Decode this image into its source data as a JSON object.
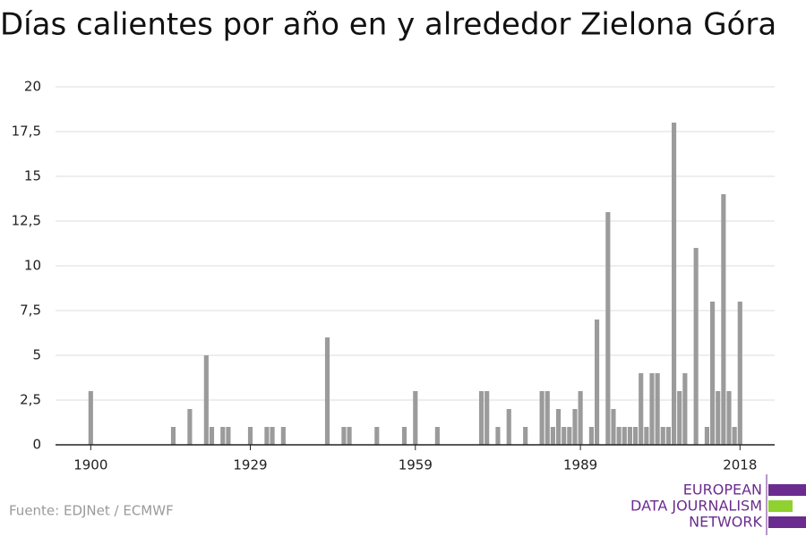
{
  "chart_data": {
    "type": "bar",
    "title": "Días calientes por año en y alrededor Zielona Góra",
    "source": "Fuente: EDJNet / ECMWF",
    "logo": [
      "EUROPEAN",
      "DATA JOURNALISM",
      "NETWORK"
    ],
    "color": "#9b9b9b",
    "grid": true,
    "x": [
      1900,
      1901,
      1902,
      1903,
      1904,
      1905,
      1906,
      1907,
      1908,
      1909,
      1910,
      1911,
      1912,
      1913,
      1914,
      1915,
      1916,
      1917,
      1918,
      1919,
      1920,
      1921,
      1922,
      1923,
      1924,
      1925,
      1926,
      1927,
      1928,
      1929,
      1930,
      1931,
      1932,
      1933,
      1934,
      1935,
      1936,
      1937,
      1938,
      1939,
      1940,
      1941,
      1942,
      1943,
      1944,
      1945,
      1946,
      1947,
      1948,
      1949,
      1950,
      1951,
      1952,
      1953,
      1954,
      1955,
      1956,
      1957,
      1958,
      1959,
      1960,
      1961,
      1962,
      1963,
      1964,
      1965,
      1966,
      1967,
      1968,
      1969,
      1970,
      1971,
      1972,
      1973,
      1974,
      1975,
      1976,
      1977,
      1978,
      1979,
      1980,
      1981,
      1982,
      1983,
      1984,
      1985,
      1986,
      1987,
      1988,
      1989,
      1990,
      1991,
      1992,
      1993,
      1994,
      1995,
      1996,
      1997,
      1998,
      1999,
      2000,
      2001,
      2002,
      2003,
      2004,
      2005,
      2006,
      2007,
      2008,
      2009,
      2010,
      2011,
      2012,
      2013,
      2014,
      2015,
      2016,
      2017,
      2018
    ],
    "values": [
      3,
      0,
      0,
      0,
      0,
      0,
      0,
      0,
      0,
      0,
      0,
      0,
      0,
      0,
      0,
      1,
      0,
      0,
      2,
      0,
      0,
      5,
      1,
      0,
      1,
      1,
      0,
      0,
      0,
      1,
      0,
      0,
      1,
      1,
      0,
      1,
      0,
      0,
      0,
      0,
      0,
      0,
      0,
      6,
      0,
      0,
      1,
      1,
      0,
      0,
      0,
      0,
      1,
      0,
      0,
      0,
      0,
      1,
      0,
      3,
      0,
      0,
      0,
      1,
      0,
      0,
      0,
      0,
      0,
      0,
      0,
      3,
      3,
      0,
      1,
      0,
      2,
      0,
      0,
      1,
      0,
      0,
      3,
      3,
      1,
      2,
      1,
      1,
      2,
      3,
      0,
      1,
      7,
      0,
      13,
      2,
      1,
      1,
      1,
      1,
      4,
      1,
      4,
      4,
      1,
      1,
      18,
      3,
      4,
      0,
      11,
      0,
      1,
      8,
      3,
      14,
      3,
      1,
      8
    ],
    "xlim": [
      1893.6,
      2024.3
    ],
    "xticks": [
      1900,
      1929,
      1959,
      1989,
      2018
    ],
    "ylim": [
      0,
      20
    ],
    "yticks": [
      0,
      {
        "value": 2.5,
        "label": "2,5"
      },
      5,
      {
        "value": 7.5,
        "label": "7,5"
      },
      10,
      {
        "value": 12.5,
        "label": "12,5"
      },
      15,
      {
        "value": 17.5,
        "label": "17,5"
      },
      20
    ]
  }
}
